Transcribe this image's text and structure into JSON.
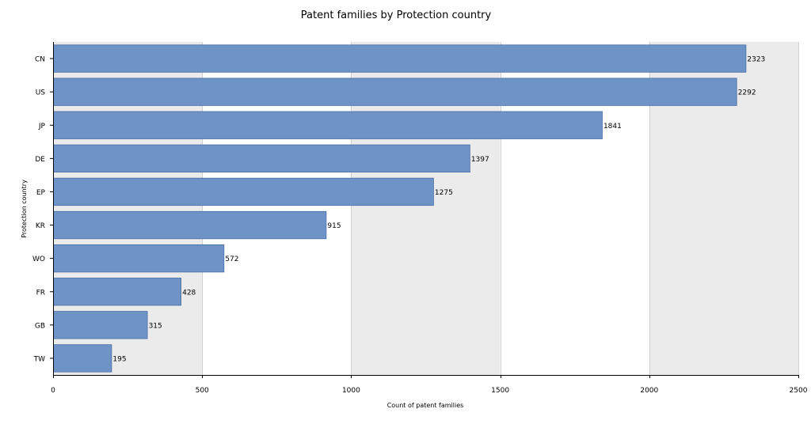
{
  "chart_data": {
    "type": "bar",
    "orientation": "horizontal",
    "title": "Patent families by Protection country",
    "xlabel": "Count of patent families",
    "ylabel": "Protection country",
    "categories": [
      "CN",
      "US",
      "JP",
      "DE",
      "EP",
      "KR",
      "WO",
      "FR",
      "GB",
      "TW"
    ],
    "values": [
      2323,
      2292,
      1841,
      1397,
      1275,
      915,
      572,
      428,
      315,
      195
    ],
    "xlim": [
      0,
      2500
    ],
    "xticks": [
      0,
      500,
      1000,
      1500,
      2000,
      2500
    ],
    "grid": "alternating vertical bands",
    "colors": {
      "bar": "#6e93c6",
      "bar_edge": "#4a6fa5",
      "band": "#ebebeb",
      "gridline": "#d0d0d0"
    }
  }
}
